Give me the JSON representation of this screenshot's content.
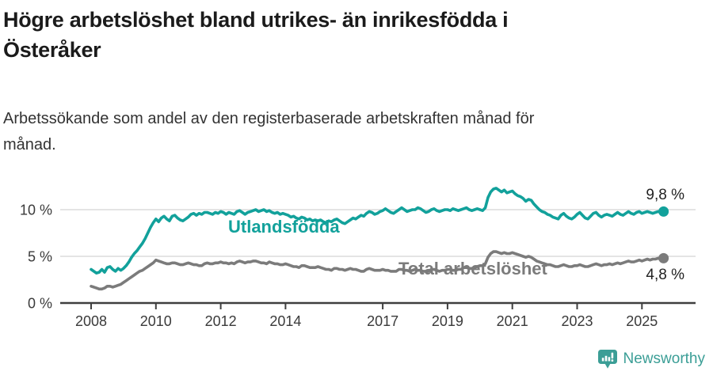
{
  "header": {
    "title_lines": [
      "Högre arbetslöshet bland utrikes- än inrikesfödda i",
      "Österåker"
    ],
    "subtitle_lines": [
      "Arbetssökande som andel av den registerbaserade arbetskraften månad för",
      "månad."
    ]
  },
  "chart_data": {
    "type": "line",
    "unit": "%",
    "frequency": "monthly",
    "x_start_year": 2008,
    "x_tick_years": [
      2008,
      2010,
      2012,
      2014,
      2017,
      2019,
      2021,
      2023,
      2025
    ],
    "y_ticks": [
      {
        "value": 0,
        "label": "0 %"
      },
      {
        "value": 5,
        "label": "5 %"
      },
      {
        "value": 10,
        "label": "10 %"
      }
    ],
    "ylim": [
      0,
      13.2
    ],
    "grid": "horizontal",
    "colors": {
      "teal": "#12a19b",
      "gray": "#7b7b7b",
      "axis": "#3f3f3f",
      "gridline": "#dbdbdb"
    },
    "series": [
      {
        "name": "Utlandsfödda",
        "color": "#12a19b",
        "end_label": "9,8 %",
        "end_value": 9.8,
        "values": [
          3.6,
          3.4,
          3.2,
          3.3,
          3.6,
          3.3,
          3.8,
          3.9,
          3.6,
          3.4,
          3.7,
          3.5,
          3.7,
          4.0,
          4.4,
          4.9,
          5.3,
          5.6,
          6.0,
          6.4,
          6.9,
          7.5,
          8.1,
          8.6,
          9.0,
          8.7,
          9.1,
          9.3,
          9.0,
          8.8,
          9.3,
          9.4,
          9.1,
          8.9,
          8.8,
          9.0,
          9.2,
          9.5,
          9.6,
          9.4,
          9.6,
          9.5,
          9.7,
          9.7,
          9.6,
          9.5,
          9.7,
          9.6,
          9.8,
          9.7,
          9.5,
          9.7,
          9.6,
          9.5,
          9.8,
          9.9,
          9.7,
          9.5,
          9.7,
          9.8,
          9.9,
          10.0,
          9.8,
          9.9,
          10.0,
          9.8,
          9.9,
          9.7,
          9.6,
          9.7,
          9.5,
          9.6,
          9.5,
          9.4,
          9.2,
          9.3,
          9.1,
          9.0,
          9.2,
          9.1,
          8.9,
          9.0,
          8.8,
          8.9,
          8.8,
          8.9,
          8.7,
          8.6,
          8.8,
          8.7,
          8.9,
          9.0,
          8.8,
          8.6,
          8.5,
          8.7,
          8.9,
          9.1,
          9.0,
          9.2,
          9.4,
          9.3,
          9.6,
          9.8,
          9.7,
          9.5,
          9.6,
          9.8,
          9.9,
          10.1,
          9.9,
          9.7,
          9.6,
          9.8,
          10.0,
          10.2,
          10.0,
          9.8,
          9.9,
          10.0,
          10.0,
          10.2,
          10.1,
          9.9,
          9.7,
          9.8,
          10.0,
          10.1,
          9.9,
          9.8,
          9.9,
          10.0,
          10.0,
          9.9,
          10.1,
          10.0,
          9.9,
          10.0,
          10.1,
          10.2,
          10.0,
          9.9,
          10.0,
          10.1,
          10.0,
          9.9,
          10.2,
          11.3,
          11.9,
          12.2,
          12.3,
          12.1,
          11.9,
          12.1,
          11.8,
          11.9,
          12.0,
          11.7,
          11.5,
          11.4,
          11.2,
          10.9,
          11.1,
          11.0,
          10.6,
          10.3,
          10.0,
          9.8,
          9.7,
          9.5,
          9.4,
          9.2,
          9.1,
          9.0,
          9.4,
          9.6,
          9.3,
          9.1,
          9.0,
          9.2,
          9.5,
          9.7,
          9.4,
          9.1,
          9.0,
          9.3,
          9.6,
          9.7,
          9.4,
          9.2,
          9.4,
          9.5,
          9.4,
          9.3,
          9.5,
          9.7,
          9.5,
          9.4,
          9.6,
          9.8,
          9.6,
          9.5,
          9.7,
          9.8,
          9.6,
          9.7,
          9.8,
          9.7,
          9.6,
          9.7,
          9.8,
          9.7,
          9.8
        ]
      },
      {
        "name": "Total arbetslöshet",
        "color": "#7b7b7b",
        "end_label": "4,8 %",
        "end_value": 4.8,
        "values": [
          1.8,
          1.7,
          1.6,
          1.5,
          1.5,
          1.6,
          1.8,
          1.8,
          1.7,
          1.8,
          1.9,
          2.0,
          2.2,
          2.4,
          2.6,
          2.8,
          3.0,
          3.2,
          3.4,
          3.5,
          3.7,
          3.9,
          4.1,
          4.3,
          4.6,
          4.5,
          4.4,
          4.3,
          4.2,
          4.2,
          4.3,
          4.3,
          4.2,
          4.1,
          4.1,
          4.2,
          4.3,
          4.2,
          4.1,
          4.1,
          4.0,
          4.0,
          4.2,
          4.3,
          4.2,
          4.2,
          4.3,
          4.3,
          4.4,
          4.3,
          4.3,
          4.2,
          4.3,
          4.2,
          4.4,
          4.5,
          4.4,
          4.3,
          4.4,
          4.4,
          4.5,
          4.5,
          4.4,
          4.3,
          4.3,
          4.2,
          4.4,
          4.3,
          4.2,
          4.2,
          4.1,
          4.1,
          4.2,
          4.1,
          4.0,
          3.9,
          3.9,
          3.8,
          4.0,
          4.0,
          3.9,
          3.8,
          3.8,
          3.8,
          3.9,
          3.8,
          3.7,
          3.6,
          3.6,
          3.5,
          3.7,
          3.7,
          3.6,
          3.6,
          3.5,
          3.6,
          3.7,
          3.6,
          3.6,
          3.5,
          3.4,
          3.4,
          3.6,
          3.7,
          3.6,
          3.5,
          3.5,
          3.5,
          3.6,
          3.5,
          3.5,
          3.4,
          3.4,
          3.4,
          3.6,
          3.6,
          3.5,
          3.5,
          3.4,
          3.5,
          3.6,
          3.5,
          3.5,
          3.4,
          3.4,
          3.4,
          3.6,
          3.6,
          3.5,
          3.4,
          3.5,
          3.5,
          3.6,
          3.6,
          3.5,
          3.5,
          3.6,
          3.6,
          3.8,
          3.8,
          3.7,
          3.7,
          3.8,
          3.9,
          4.0,
          4.0,
          4.2,
          4.9,
          5.3,
          5.5,
          5.5,
          5.4,
          5.3,
          5.4,
          5.3,
          5.3,
          5.4,
          5.3,
          5.2,
          5.1,
          5.0,
          4.9,
          5.0,
          4.9,
          4.7,
          4.5,
          4.4,
          4.3,
          4.2,
          4.1,
          4.1,
          4.0,
          3.9,
          3.9,
          4.0,
          4.1,
          4.0,
          3.9,
          3.9,
          4.0,
          4.0,
          4.1,
          4.0,
          3.9,
          3.9,
          4.0,
          4.1,
          4.2,
          4.1,
          4.0,
          4.1,
          4.1,
          4.2,
          4.1,
          4.2,
          4.3,
          4.2,
          4.3,
          4.4,
          4.5,
          4.4,
          4.4,
          4.5,
          4.6,
          4.5,
          4.6,
          4.7,
          4.6,
          4.7,
          4.7,
          4.8,
          4.7,
          4.8
        ]
      }
    ]
  },
  "footer": {
    "brand": "Newsworthy",
    "brand_color": "#3b9e96",
    "logo_icon": "newsworthy-pin-barchart-icon"
  }
}
